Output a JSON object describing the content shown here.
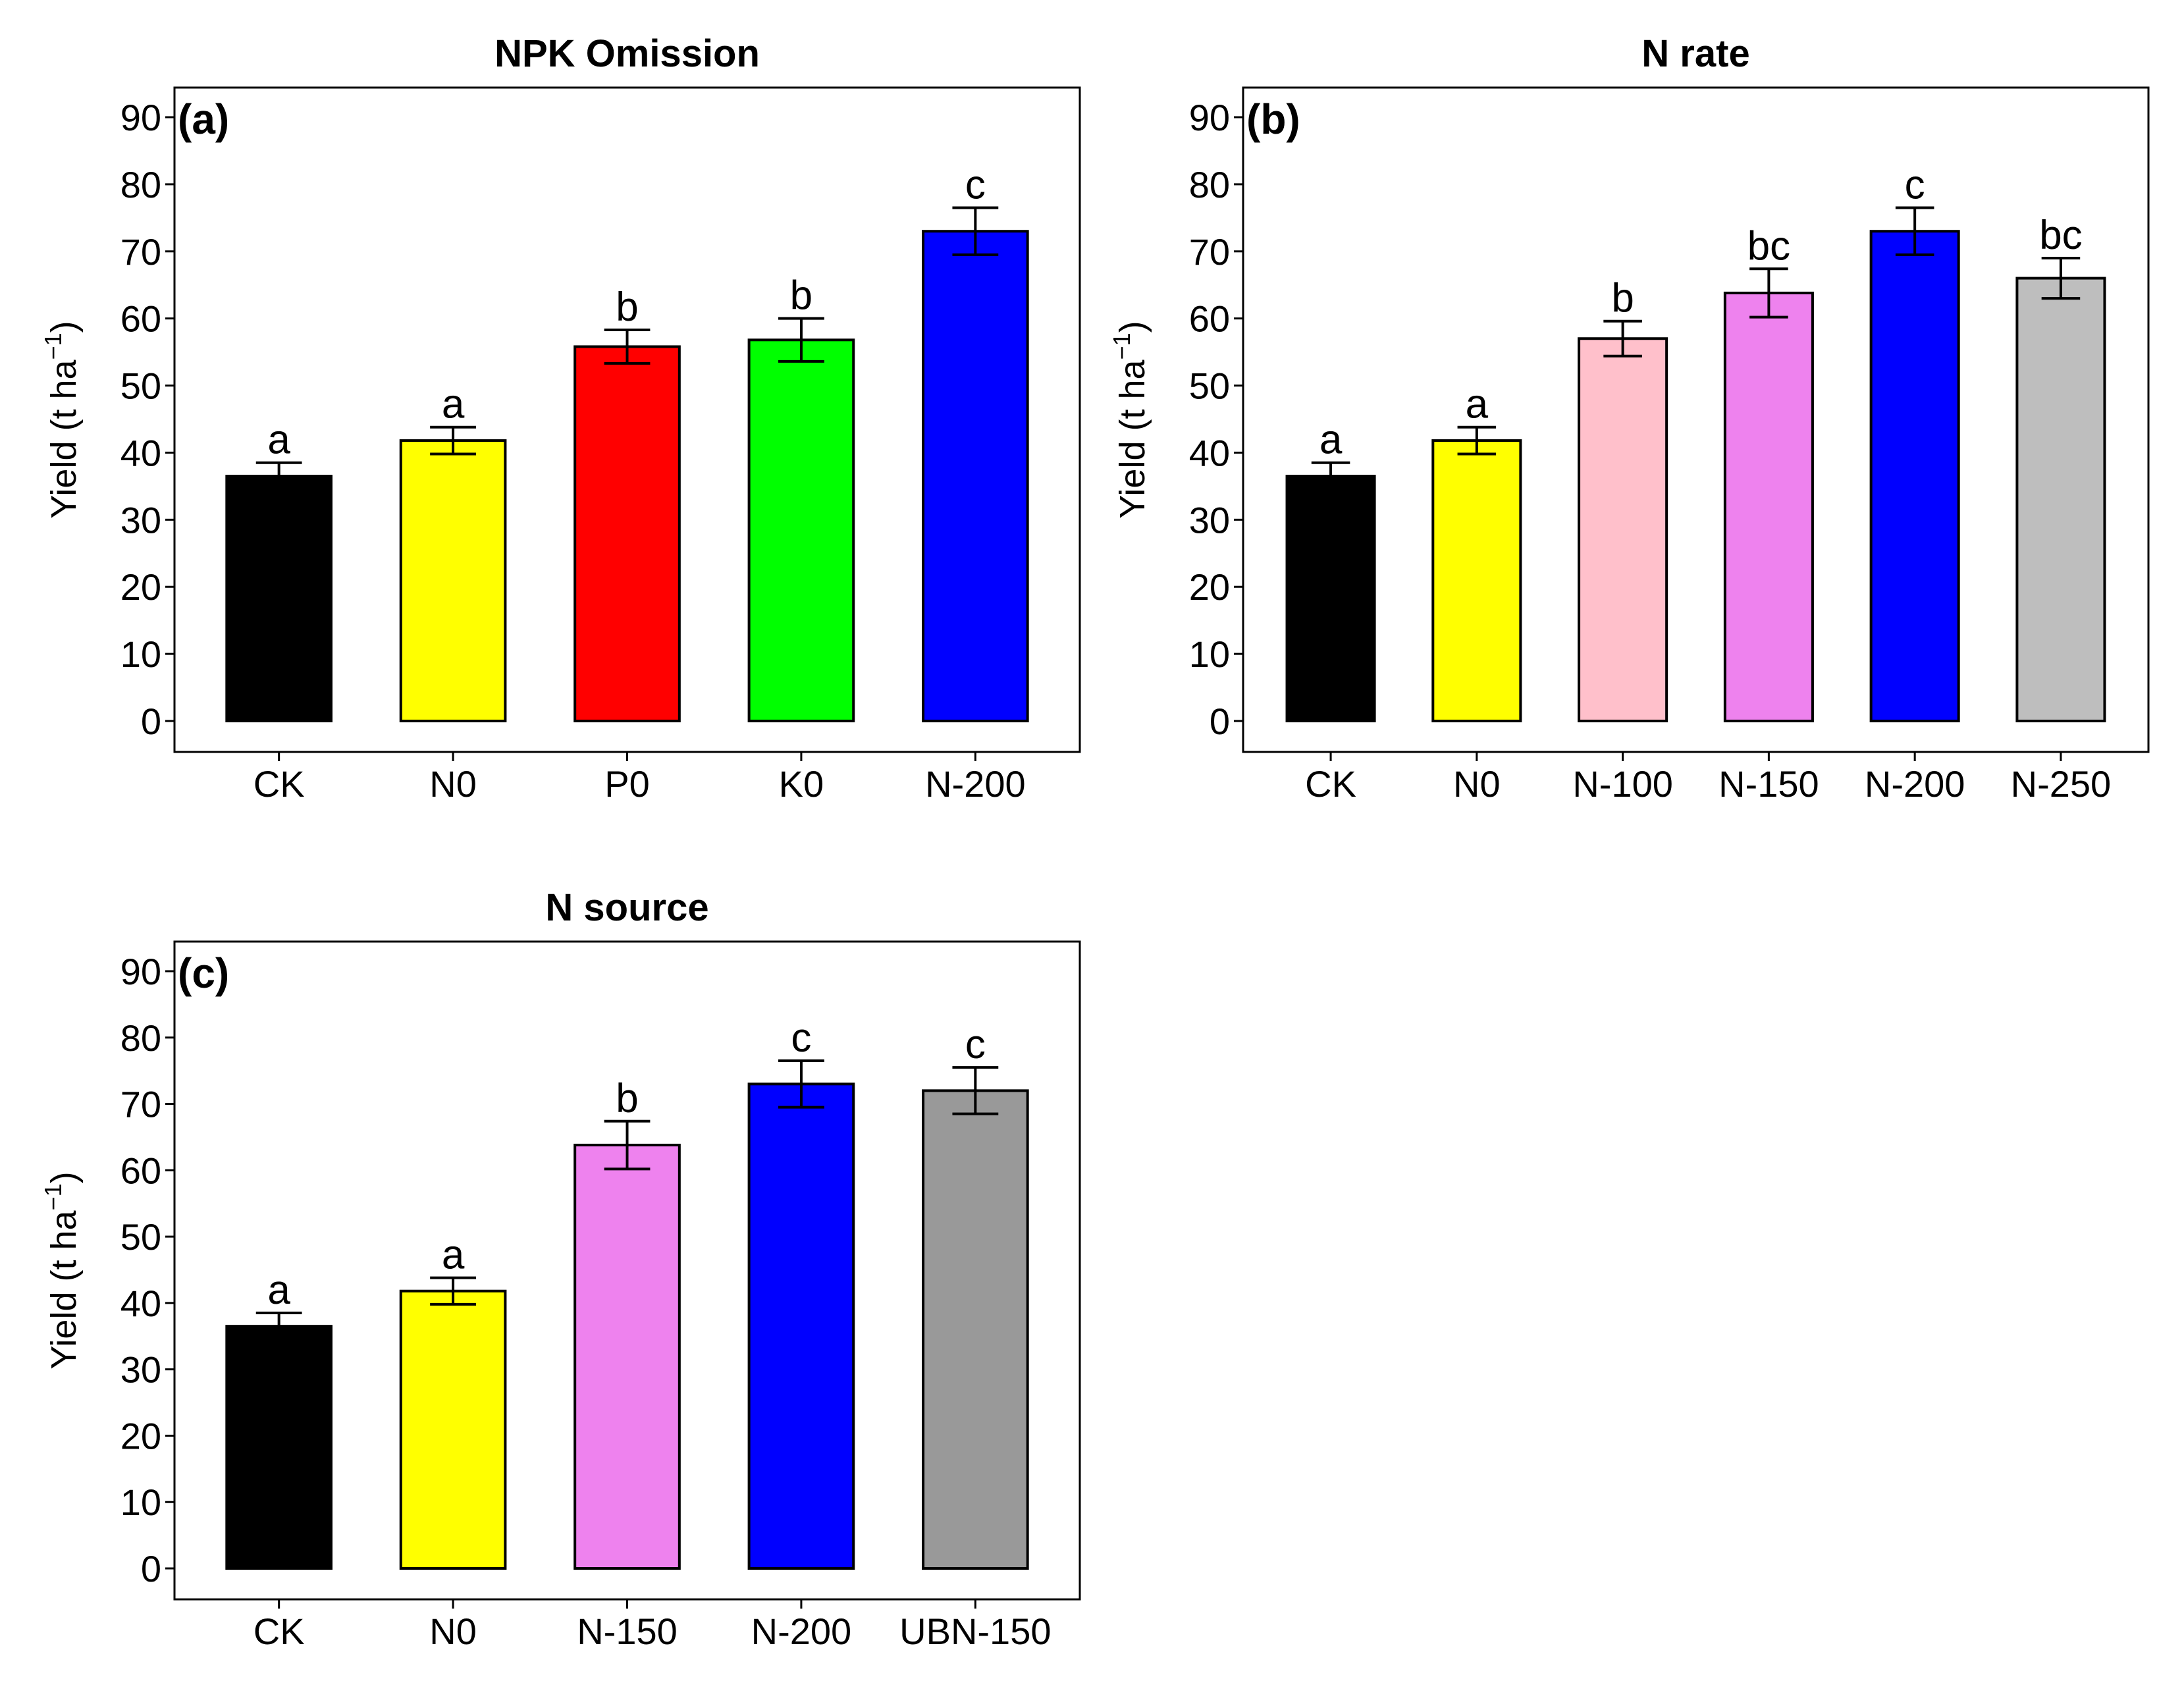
{
  "chart_data": [
    {
      "type": "bar",
      "panel": "a",
      "tag": "(a)",
      "title": "NPK Omission",
      "ylabel": "Yield (t ha",
      "ylabel_sup": "−1",
      "ylabel_tail": ")",
      "ylim": [
        0,
        90
      ],
      "yticks": [
        0,
        10,
        20,
        30,
        40,
        50,
        60,
        70,
        80,
        90
      ],
      "grid": false,
      "categories": [
        "CK",
        "N0",
        "P0",
        "K0",
        "N-200"
      ],
      "values": [
        36.5,
        41.8,
        55.8,
        56.8,
        73.0
      ],
      "errors": [
        2.0,
        2.0,
        2.5,
        3.2,
        3.5
      ],
      "letters": [
        "a",
        "a",
        "b",
        "b",
        "c"
      ],
      "colors": [
        "#000000",
        "#ffff00",
        "#ff0000",
        "#00ff00",
        "#0000ff"
      ]
    },
    {
      "type": "bar",
      "panel": "b",
      "tag": "(b)",
      "title": "N rate",
      "ylabel": "Yield (t ha",
      "ylabel_sup": "−1",
      "ylabel_tail": ")",
      "ylim": [
        0,
        90
      ],
      "yticks": [
        0,
        10,
        20,
        30,
        40,
        50,
        60,
        70,
        80,
        90
      ],
      "grid": false,
      "categories": [
        "CK",
        "N0",
        "N-100",
        "N-150",
        "N-200",
        "N-250"
      ],
      "values": [
        36.5,
        41.8,
        57.0,
        63.8,
        73.0,
        66.0
      ],
      "errors": [
        2.0,
        2.0,
        2.6,
        3.6,
        3.5,
        3.0
      ],
      "letters": [
        "a",
        "a",
        "b",
        "bc",
        "c",
        "bc"
      ],
      "colors": [
        "#000000",
        "#ffff00",
        "#ffc0cb",
        "#ee82ee",
        "#0000ff",
        "#bebebe"
      ]
    },
    {
      "type": "bar",
      "panel": "c",
      "tag": "(c)",
      "title": "N source",
      "ylabel": "Yield (t ha",
      "ylabel_sup": "−1",
      "ylabel_tail": ")",
      "ylim": [
        0,
        90
      ],
      "yticks": [
        0,
        10,
        20,
        30,
        40,
        50,
        60,
        70,
        80,
        90
      ],
      "grid": false,
      "categories": [
        "CK",
        "N0",
        "N-150",
        "N-200",
        "UBN-150"
      ],
      "values": [
        36.5,
        41.8,
        63.8,
        73.0,
        72.0
      ],
      "errors": [
        2.0,
        2.0,
        3.6,
        3.5,
        3.5
      ],
      "letters": [
        "a",
        "a",
        "b",
        "c",
        "c"
      ],
      "colors": [
        "#000000",
        "#ffff00",
        "#ee82ee",
        "#0000ff",
        "#999999"
      ]
    }
  ]
}
